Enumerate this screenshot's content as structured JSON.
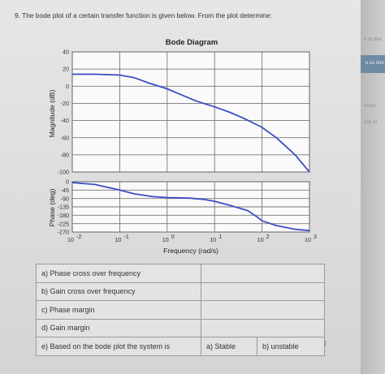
{
  "question": "9. The bode plot of a certain transfer function is given below. From the plot determine:",
  "chart_data": [
    {
      "type": "line",
      "title": "Bode Diagram",
      "ylabel": "Magnitude (dB)",
      "xlabel": "",
      "xscale": "log",
      "xlim": [
        0.01,
        1000
      ],
      "ylim": [
        -100,
        40
      ],
      "yticks": [
        "40",
        "20",
        "0",
        "-20",
        "-40",
        "-60",
        "-80",
        "-100"
      ],
      "grid": true,
      "series": [
        {
          "color": "#3d4ec4",
          "x": [
            0.01,
            0.03,
            0.1,
            0.2,
            0.4,
            1,
            2,
            4,
            10,
            20,
            40,
            100,
            200,
            500,
            1000
          ],
          "y": [
            14,
            14,
            13,
            10,
            4,
            -3,
            -10,
            -17,
            -24,
            -30,
            -37,
            -48,
            -60,
            -80,
            -100
          ]
        }
      ]
    },
    {
      "type": "line",
      "ylabel": "Phase (deg)",
      "xlabel": "Frequency  (rad/s)",
      "xscale": "log",
      "xlim": [
        0.01,
        1000
      ],
      "xticks": [
        "10",
        "10",
        "10",
        "10",
        "10",
        "10"
      ],
      "xtick_exponents": [
        "-2",
        "-1",
        "0",
        "1",
        "2",
        "3"
      ],
      "ylim": [
        -270,
        0
      ],
      "yticks": [
        "0",
        "-45",
        "-90",
        "-135",
        "-180",
        "-225",
        "-270"
      ],
      "grid": true,
      "series": [
        {
          "color": "#3d4ec4",
          "x": [
            0.01,
            0.03,
            0.1,
            0.2,
            0.5,
            1,
            3,
            6,
            10,
            20,
            50,
            80,
            100,
            200,
            500,
            1000
          ],
          "y": [
            -5,
            -15,
            -45,
            -65,
            -80,
            -85,
            -88,
            -95,
            -105,
            -125,
            -155,
            -190,
            -210,
            -235,
            -255,
            -262
          ]
        }
      ]
    }
  ],
  "table": {
    "rows": [
      {
        "label": "a) Phase cross over frequency"
      },
      {
        "label": "b) Gain cross over frequency"
      },
      {
        "label": "c) Phase margin"
      },
      {
        "label": "d) Gain margin"
      },
      {
        "label": "e) Based on the bode plot the system is",
        "option_a": "a) Stable",
        "option_b": "b) unstable"
      }
    ]
  },
  "side_panel": {
    "line1": "s or dire",
    "line2": "e as dire",
    "line3": "nents",
    "line4": "ctor lu"
  }
}
